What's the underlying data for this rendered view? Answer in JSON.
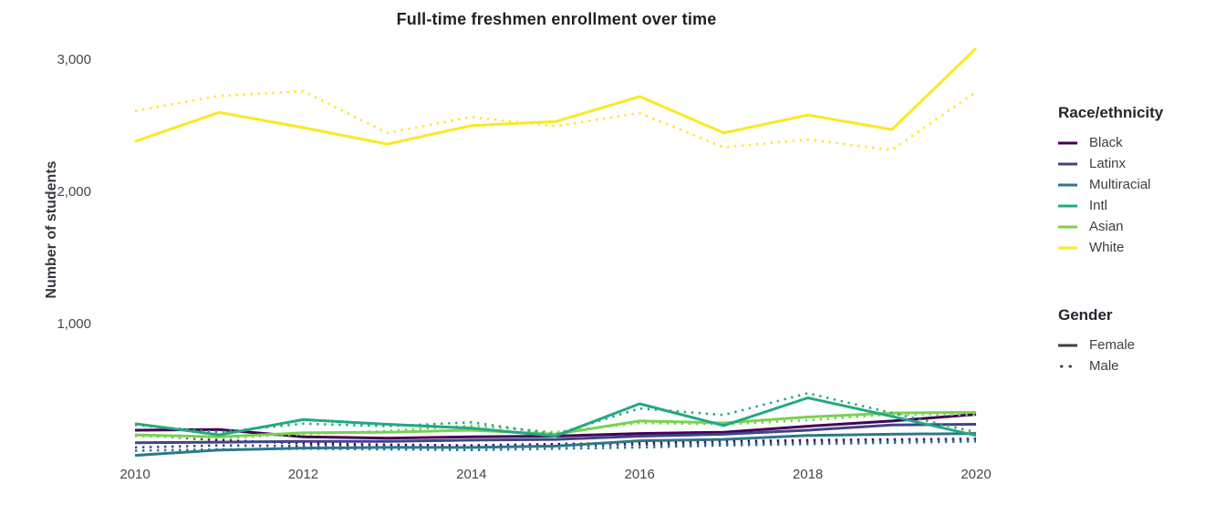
{
  "title": "Full-time freshmen enrollment over time",
  "y_axis": {
    "label": "Number of students"
  },
  "legend": {
    "race_title": "Race/ethnicity",
    "race_items": [
      {
        "label": "Black",
        "color": "#440154"
      },
      {
        "label": "Latinx",
        "color": "#414487"
      },
      {
        "label": "Multiracial",
        "color": "#2a788e"
      },
      {
        "label": "Intl",
        "color": "#22a884"
      },
      {
        "label": "Asian",
        "color": "#7ad151"
      },
      {
        "label": "White",
        "color": "#fde725"
      }
    ],
    "gender_title": "Gender",
    "gender_items": [
      {
        "label": "Female",
        "line_style": "solid"
      },
      {
        "label": "Male",
        "line_style": "dotted"
      }
    ],
    "swatch_text_color": "#404040"
  },
  "chart_data": {
    "type": "line",
    "title": "Full-time freshmen enrollment over time",
    "xlabel": "",
    "ylabel": "Number of students",
    "x": [
      2010,
      2011,
      2012,
      2013,
      2014,
      2015,
      2016,
      2017,
      2018,
      2019,
      2020
    ],
    "x_ticks": [
      2010,
      2012,
      2014,
      2016,
      2018,
      2020
    ],
    "x_tick_labels": [
      "2010",
      "2012",
      "2014",
      "2016",
      "2018",
      "2020"
    ],
    "y_ticks": [
      1000,
      2000,
      3000
    ],
    "y_tick_labels": [
      "1,000",
      "2,000",
      "3,000"
    ],
    "xlim": [
      2010,
      2020
    ],
    "ylim": [
      0,
      3200
    ],
    "grid": false,
    "legend_position": "right",
    "style_note": "gender encoded by line style: Female=solid, Male=dotted; race by viridis color",
    "series": [
      {
        "name": "Black Female",
        "race": "Black",
        "gender": "Female",
        "color": "#440154",
        "line_style": "solid",
        "values": [
          200,
          205,
          150,
          140,
          150,
          155,
          175,
          185,
          230,
          270,
          320
        ]
      },
      {
        "name": "Black Male",
        "race": "Black",
        "gender": "Male",
        "color": "#440154",
        "line_style": "dotted",
        "values": [
          165,
          125,
          100,
          90,
          85,
          95,
          105,
          115,
          125,
          130,
          135
        ]
      },
      {
        "name": "Latinx Female",
        "race": "Latinx",
        "gender": "Female",
        "color": "#414487",
        "line_style": "solid",
        "values": [
          105,
          110,
          115,
          115,
          125,
          130,
          155,
          170,
          200,
          240,
          245
        ]
      },
      {
        "name": "Latinx Male",
        "race": "Latinx",
        "gender": "Male",
        "color": "#414487",
        "line_style": "dotted",
        "values": [
          70,
          85,
          80,
          75,
          70,
          80,
          90,
          95,
          110,
          120,
          130
        ]
      },
      {
        "name": "Multiracial Female",
        "race": "Multiracial",
        "gender": "Female",
        "color": "#2a788e",
        "line_style": "solid",
        "values": [
          10,
          50,
          65,
          70,
          70,
          80,
          120,
          130,
          160,
          170,
          175
        ]
      },
      {
        "name": "Multiracial Male",
        "race": "Multiracial",
        "gender": "Male",
        "color": "#2a788e",
        "line_style": "dotted",
        "values": [
          45,
          55,
          60,
          55,
          50,
          60,
          70,
          85,
          95,
          105,
          115
        ]
      },
      {
        "name": "White Female",
        "race": "White",
        "gender": "Female",
        "color": "#fde725",
        "line_style": "solid",
        "values": [
          2385,
          2605,
          2490,
          2365,
          2505,
          2535,
          2725,
          2450,
          2585,
          2475,
          3090
        ]
      },
      {
        "name": "White Male",
        "race": "White",
        "gender": "Male",
        "color": "#fde725",
        "line_style": "dotted",
        "values": [
          2615,
          2730,
          2765,
          2450,
          2570,
          2500,
          2600,
          2340,
          2400,
          2320,
          2760
        ]
      },
      {
        "name": "Asian Female",
        "race": "Asian",
        "gender": "Female",
        "color": "#7ad151",
        "line_style": "solid",
        "values": [
          165,
          150,
          180,
          185,
          200,
          170,
          270,
          255,
          300,
          330,
          335
        ]
      },
      {
        "name": "Asian Male",
        "race": "Asian",
        "gender": "Male",
        "color": "#7ad151",
        "line_style": "dotted",
        "values": [
          155,
          140,
          170,
          195,
          235,
          185,
          255,
          245,
          275,
          320,
          315
        ]
      },
      {
        "name": "Intl Female",
        "race": "Intl",
        "gender": "Female",
        "color": "#22a884",
        "line_style": "solid",
        "values": [
          250,
          165,
          280,
          245,
          215,
          155,
          400,
          235,
          445,
          305,
          160
        ]
      },
      {
        "name": "Intl Male",
        "race": "Intl",
        "gender": "Male",
        "color": "#22a884",
        "line_style": "dotted",
        "values": [
          240,
          185,
          250,
          230,
          260,
          170,
          365,
          315,
          480,
          330,
          185
        ]
      }
    ]
  }
}
